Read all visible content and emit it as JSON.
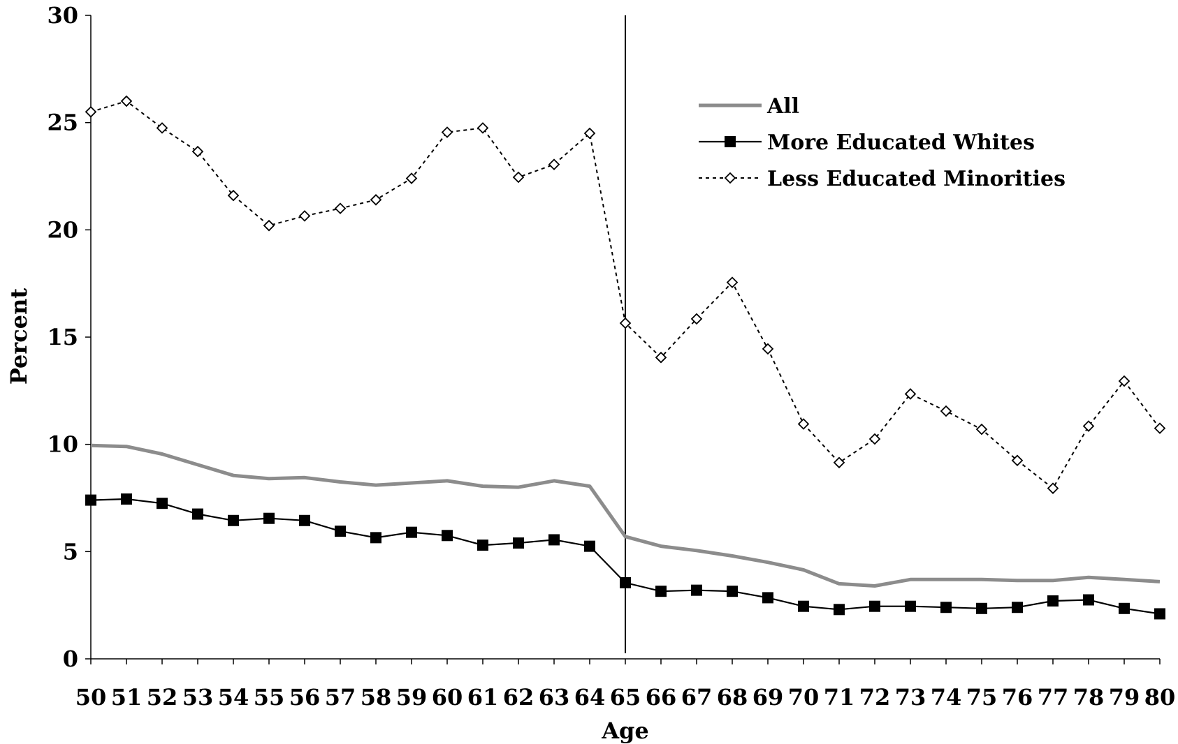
{
  "chart_data": {
    "type": "line",
    "title": "",
    "xlabel": "Age",
    "ylabel": "Percent",
    "x": [
      50,
      51,
      52,
      53,
      54,
      55,
      56,
      57,
      58,
      59,
      60,
      61,
      62,
      63,
      64,
      65,
      66,
      67,
      68,
      69,
      70,
      71,
      72,
      73,
      74,
      75,
      76,
      77,
      78,
      79,
      80
    ],
    "xlim": [
      50,
      80
    ],
    "ylim": [
      0,
      30
    ],
    "yticks": [
      0,
      5,
      10,
      15,
      20,
      25,
      30
    ],
    "grid": false,
    "legend_position": "top-right",
    "vertical_reference_line_x": 65,
    "series": [
      {
        "name": "All",
        "style": "solid-thick-gray",
        "color": "#8c8c8c",
        "values": [
          9.95,
          9.9,
          9.55,
          9.05,
          8.55,
          8.4,
          8.45,
          8.25,
          8.1,
          8.2,
          8.3,
          8.05,
          8.0,
          8.3,
          8.05,
          5.7,
          5.25,
          5.05,
          4.8,
          4.5,
          4.15,
          3.5,
          3.4,
          3.7,
          3.7,
          3.7,
          3.65,
          3.65,
          3.8,
          3.7,
          3.6
        ]
      },
      {
        "name": "More Educated Whites",
        "style": "solid-black-square",
        "color": "#000000",
        "values": [
          7.4,
          7.45,
          7.25,
          6.75,
          6.45,
          6.55,
          6.45,
          5.95,
          5.65,
          5.9,
          5.75,
          5.3,
          5.4,
          5.55,
          5.25,
          3.55,
          3.15,
          3.2,
          3.15,
          2.85,
          2.45,
          2.3,
          2.45,
          2.45,
          2.4,
          2.35,
          2.4,
          2.7,
          2.75,
          2.35,
          2.1
        ]
      },
      {
        "name": "Less Educated Minorities",
        "style": "dotted-black-diamond",
        "color": "#000000",
        "values": [
          25.5,
          26.0,
          24.75,
          23.65,
          21.6,
          20.2,
          20.65,
          21.0,
          21.4,
          22.4,
          24.55,
          24.75,
          22.45,
          23.05,
          24.5,
          15.65,
          14.05,
          15.85,
          17.55,
          14.45,
          10.95,
          9.15,
          10.25,
          12.35,
          11.55,
          10.7,
          9.25,
          7.95,
          10.85,
          12.95,
          10.75
        ]
      }
    ]
  }
}
